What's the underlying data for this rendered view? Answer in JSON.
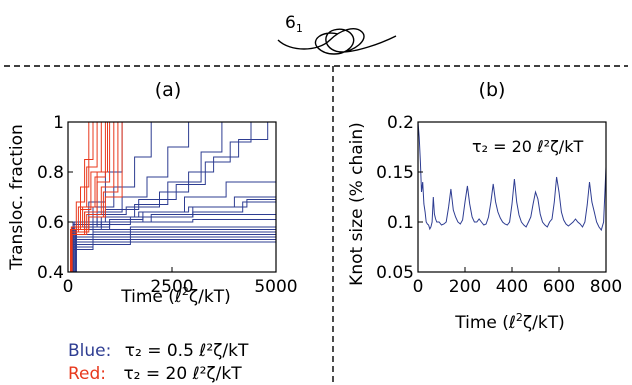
{
  "header": {
    "knot_label": "6",
    "knot_label_sub": "1"
  },
  "panel_a": {
    "label": "(a)"
  },
  "panel_b": {
    "label": "(b)"
  },
  "legend": {
    "blue_label": "Blue:",
    "blue_text": "τ₂ = 0.5 ℓ²ζ/kT",
    "red_label": "Red:",
    "red_text": "τ₂ = 20 ℓ²ζ/kT",
    "blue_color": "#2e3d92",
    "red_color": "#e8381c"
  },
  "chart_data": [
    {
      "type": "line",
      "panel": "(a)",
      "xlabel": "Time (ℓ²ζ/kT)",
      "ylabel": "Transloc. fraction",
      "xlim": [
        0,
        5000
      ],
      "ylim": [
        0.4,
        1.0
      ],
      "xticks": [
        0,
        2500,
        5000
      ],
      "xtick_labels": [
        "0",
        "2500",
        "5000"
      ],
      "yticks": [
        0.4,
        0.6,
        0.8,
        1.0
      ],
      "ytick_labels": [
        "0.4",
        "0.6",
        "0.8",
        "1"
      ],
      "grid": false,
      "series": [
        {
          "group": "blue",
          "x": [
            0,
            150,
            600,
            1400,
            2200,
            2900,
            3500,
            4100,
            4800
          ],
          "y": [
            0.4,
            0.58,
            0.63,
            0.66,
            0.72,
            0.8,
            0.86,
            0.93,
            1.0
          ]
        },
        {
          "group": "blue",
          "x": [
            0,
            200,
            900,
            1700,
            2600,
            3300,
            3900,
            4400
          ],
          "y": [
            0.4,
            0.6,
            0.65,
            0.69,
            0.75,
            0.84,
            0.92,
            1.0
          ]
        },
        {
          "group": "blue",
          "x": [
            0,
            120,
            700,
            1300,
            1900,
            2400,
            2900
          ],
          "y": [
            0.4,
            0.58,
            0.64,
            0.7,
            0.78,
            0.9,
            1.0
          ]
        },
        {
          "group": "blue",
          "x": [
            0,
            180,
            800,
            1600,
            2400,
            3200,
            3700
          ],
          "y": [
            0.4,
            0.57,
            0.62,
            0.67,
            0.76,
            0.88,
            1.0
          ]
        },
        {
          "group": "blue",
          "x": [
            0,
            150,
            600,
            1100,
            1600,
            2000
          ],
          "y": [
            0.4,
            0.6,
            0.66,
            0.74,
            0.86,
            1.0
          ]
        },
        {
          "group": "blue",
          "x": [
            0,
            120,
            500,
            900,
            1300
          ],
          "y": [
            0.4,
            0.6,
            0.68,
            0.8,
            1.0
          ]
        },
        {
          "group": "blue",
          "x": [
            0,
            200,
            1000,
            1800,
            2800,
            3800,
            5000
          ],
          "y": [
            0.4,
            0.58,
            0.61,
            0.64,
            0.7,
            0.76,
            0.81
          ]
        },
        {
          "group": "blue",
          "x": [
            0,
            200,
            1000,
            2000,
            3000,
            4000,
            5000
          ],
          "y": [
            0.4,
            0.57,
            0.6,
            0.63,
            0.66,
            0.7,
            0.75
          ]
        },
        {
          "group": "blue",
          "x": [
            0,
            150,
            800,
            1800,
            3000,
            4200,
            5000
          ],
          "y": [
            0.4,
            0.58,
            0.6,
            0.62,
            0.64,
            0.68,
            0.72
          ]
        },
        {
          "group": "blue",
          "x": [
            0,
            120,
            700,
            1700,
            2900,
            4300,
            5000
          ],
          "y": [
            0.4,
            0.59,
            0.62,
            0.64,
            0.66,
            0.69,
            0.7
          ]
        },
        {
          "group": "blue",
          "x": [
            0,
            100,
            600,
            1500,
            3000,
            5000
          ],
          "y": [
            0.4,
            0.58,
            0.6,
            0.62,
            0.63,
            0.64
          ]
        },
        {
          "group": "blue",
          "x": [
            0,
            100,
            600,
            1500,
            3000,
            5000
          ],
          "y": [
            0.4,
            0.57,
            0.59,
            0.6,
            0.61,
            0.62
          ]
        },
        {
          "group": "blue",
          "x": [
            0,
            100,
            600,
            1500,
            3000,
            5000
          ],
          "y": [
            0.4,
            0.55,
            0.57,
            0.58,
            0.58,
            0.58
          ]
        },
        {
          "group": "blue",
          "x": [
            0,
            100,
            600,
            1500,
            3000,
            5000
          ],
          "y": [
            0.4,
            0.54,
            0.56,
            0.57,
            0.57,
            0.57
          ]
        },
        {
          "group": "blue",
          "x": [
            0,
            100,
            600,
            1500,
            3000,
            5000
          ],
          "y": [
            0.4,
            0.53,
            0.55,
            0.56,
            0.56,
            0.56
          ]
        },
        {
          "group": "blue",
          "x": [
            0,
            100,
            600,
            1500,
            3000,
            5000
          ],
          "y": [
            0.4,
            0.52,
            0.54,
            0.55,
            0.55,
            0.55
          ]
        },
        {
          "group": "blue",
          "x": [
            0,
            100,
            600,
            1500,
            3000,
            5000
          ],
          "y": [
            0.4,
            0.51,
            0.53,
            0.54,
            0.54,
            0.54
          ]
        },
        {
          "group": "blue",
          "x": [
            0,
            100,
            600,
            1500,
            3000,
            5000
          ],
          "y": [
            0.4,
            0.5,
            0.52,
            0.53,
            0.53,
            0.53
          ]
        },
        {
          "group": "blue",
          "x": [
            0,
            100,
            600,
            1500,
            3000,
            5000
          ],
          "y": [
            0.4,
            0.49,
            0.51,
            0.52,
            0.52,
            0.52
          ]
        },
        {
          "group": "red",
          "x": [
            0,
            60,
            200,
            400,
            600
          ],
          "y": [
            0.4,
            0.55,
            0.68,
            0.85,
            1.0
          ]
        },
        {
          "group": "red",
          "x": [
            0,
            60,
            250,
            450,
            700
          ],
          "y": [
            0.4,
            0.56,
            0.66,
            0.82,
            1.0
          ]
        },
        {
          "group": "red",
          "x": [
            0,
            60,
            300,
            550,
            800
          ],
          "y": [
            0.4,
            0.57,
            0.65,
            0.8,
            1.0
          ]
        },
        {
          "group": "red",
          "x": [
            0,
            80,
            350,
            650,
            900
          ],
          "y": [
            0.4,
            0.58,
            0.66,
            0.78,
            1.0
          ]
        },
        {
          "group": "red",
          "x": [
            0,
            80,
            400,
            700,
            1000
          ],
          "y": [
            0.4,
            0.56,
            0.64,
            0.76,
            1.0
          ]
        },
        {
          "group": "red",
          "x": [
            0,
            80,
            450,
            800,
            1100
          ],
          "y": [
            0.4,
            0.55,
            0.63,
            0.74,
            1.0
          ]
        },
        {
          "group": "red",
          "x": [
            0,
            90,
            500,
            850,
            1200
          ],
          "y": [
            0.4,
            0.57,
            0.62,
            0.72,
            1.0
          ]
        },
        {
          "group": "red",
          "x": [
            0,
            90,
            300,
            500
          ],
          "y": [
            0.4,
            0.58,
            0.74,
            1.0
          ]
        },
        {
          "group": "red",
          "x": [
            0,
            90,
            500,
            900,
            1300
          ],
          "y": [
            0.4,
            0.56,
            0.62,
            0.7,
            1.0
          ]
        },
        {
          "group": "red",
          "x": [
            0,
            100,
            400,
            700,
            950
          ],
          "y": [
            0.4,
            0.55,
            0.64,
            0.8,
            1.0
          ]
        }
      ]
    },
    {
      "type": "line",
      "panel": "(b)",
      "xlabel": "Time (ℓ²ζ/kT)",
      "ylabel": "Knot size (% chain)",
      "annotation": "τ₂ = 20 ℓ²ζ/kT",
      "xlim": [
        0,
        800
      ],
      "ylim": [
        0.05,
        0.2
      ],
      "xticks": [
        0,
        200,
        400,
        600,
        800
      ],
      "xtick_labels": [
        "0",
        "200",
        "400",
        "600",
        "800"
      ],
      "yticks": [
        0.05,
        0.1,
        0.15,
        0.2
      ],
      "ytick_labels": [
        "0.05",
        "0.1",
        "0.15",
        "0.2"
      ],
      "grid": false,
      "series": [
        {
          "x": [
            0,
            5,
            10,
            15,
            20,
            25,
            30,
            35,
            40,
            45,
            50,
            55,
            60,
            65,
            70,
            75,
            80,
            90,
            100,
            110,
            120,
            130,
            140,
            150,
            160,
            170,
            180,
            190,
            200,
            210,
            220,
            230,
            240,
            250,
            260,
            270,
            280,
            290,
            300,
            310,
            320,
            330,
            340,
            350,
            360,
            370,
            380,
            390,
            400,
            410,
            420,
            430,
            440,
            450,
            460,
            470,
            480,
            490,
            500,
            510,
            520,
            530,
            540,
            550,
            560,
            570,
            580,
            590,
            600,
            610,
            620,
            630,
            640,
            650,
            660,
            670,
            680,
            690,
            700,
            710,
            720,
            730,
            740,
            750,
            760,
            770,
            780,
            790,
            800
          ],
          "y": [
            0.2,
            0.185,
            0.16,
            0.13,
            0.14,
            0.118,
            0.11,
            0.1,
            0.098,
            0.097,
            0.093,
            0.095,
            0.1,
            0.125,
            0.108,
            0.103,
            0.1,
            0.1,
            0.097,
            0.098,
            0.1,
            0.115,
            0.133,
            0.112,
            0.105,
            0.1,
            0.098,
            0.102,
            0.12,
            0.136,
            0.118,
            0.105,
            0.1,
            0.1,
            0.103,
            0.1,
            0.097,
            0.098,
            0.105,
            0.12,
            0.138,
            0.12,
            0.11,
            0.104,
            0.1,
            0.098,
            0.097,
            0.1,
            0.118,
            0.143,
            0.12,
            0.107,
            0.1,
            0.097,
            0.095,
            0.1,
            0.105,
            0.118,
            0.13,
            0.123,
            0.108,
            0.1,
            0.097,
            0.095,
            0.1,
            0.103,
            0.12,
            0.145,
            0.13,
            0.11,
            0.102,
            0.098,
            0.096,
            0.098,
            0.1,
            0.103,
            0.1,
            0.098,
            0.095,
            0.1,
            0.117,
            0.14,
            0.12,
            0.11,
            0.1,
            0.095,
            0.092,
            0.1,
            0.155
          ]
        }
      ]
    }
  ]
}
